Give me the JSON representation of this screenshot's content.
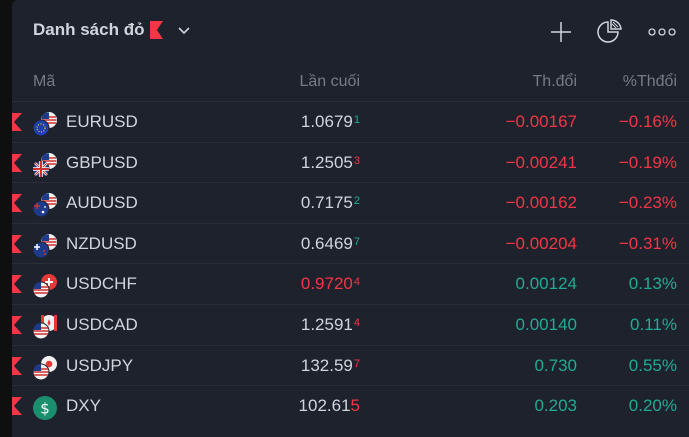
{
  "header": {
    "title": "Danh sách đỏ",
    "flag_color": "#f23645"
  },
  "columns": {
    "symbol": "Mã",
    "last": "Lần cuối",
    "change": "Th.đổi",
    "change_pct": "%Thđổi"
  },
  "colors": {
    "negative": "#f23645",
    "positive": "#22ab94",
    "text": "#d1d4dc",
    "muted": "#787b86",
    "panel": "#1e222d"
  },
  "rows": [
    {
      "symbol": "EURUSD",
      "icon": "eu-us-flags-icon",
      "last": "1.0679",
      "last_sup": "1",
      "last_color": "text",
      "sup_color": "positive",
      "change": "−0.00167",
      "change_pct": "−0.16%",
      "dir": "neg"
    },
    {
      "symbol": "GBPUSD",
      "icon": "gb-us-flags-icon",
      "last": "1.2505",
      "last_sup": "3",
      "last_color": "text",
      "sup_color": "negative",
      "change": "−0.00241",
      "change_pct": "−0.19%",
      "dir": "neg"
    },
    {
      "symbol": "AUDUSD",
      "icon": "au-us-flags-icon",
      "last": "0.7175",
      "last_sup": "2",
      "last_color": "text",
      "sup_color": "positive",
      "change": "−0.00162",
      "change_pct": "−0.23%",
      "dir": "neg"
    },
    {
      "symbol": "NZDUSD",
      "icon": "nz-us-flags-icon",
      "last": "0.6469",
      "last_sup": "7",
      "last_color": "text",
      "sup_color": "positive",
      "change": "−0.00204",
      "change_pct": "−0.31%",
      "dir": "neg"
    },
    {
      "symbol": "USDCHF",
      "icon": "us-ch-flags-icon",
      "last": "0.9720",
      "last_sup": "4",
      "last_color": "negative",
      "sup_color": "negative",
      "change": "0.00124",
      "change_pct": "0.13%",
      "dir": "pos"
    },
    {
      "symbol": "USDCAD",
      "icon": "us-ca-flags-icon",
      "last": "1.2591",
      "last_sup": "4",
      "last_color": "text",
      "sup_color": "negative",
      "change": "0.00140",
      "change_pct": "0.11%",
      "dir": "pos"
    },
    {
      "symbol": "USDJPY",
      "icon": "us-jp-flags-icon",
      "last": "132.59",
      "last_sup": "7",
      "last_color": "text",
      "sup_color": "negative",
      "change": "0.730",
      "change_pct": "0.55%",
      "dir": "pos"
    },
    {
      "symbol": "DXY",
      "icon": "dollar-index-icon",
      "last": "102.61",
      "last_big": "5",
      "last_color": "text",
      "sup_color": "negative",
      "change": "0.203",
      "change_pct": "0.20%",
      "dir": "pos"
    }
  ]
}
